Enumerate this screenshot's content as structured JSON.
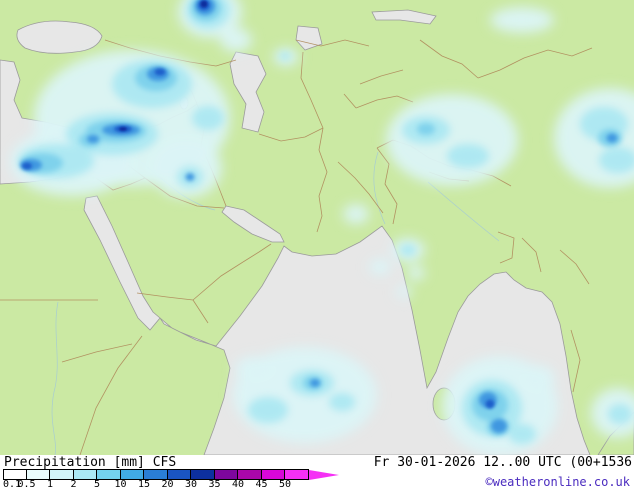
{
  "footer": {
    "title": "Precipitation [mm] CFS",
    "datetime": "Fr 30-01-2026 12..00 UTC (00+1536",
    "copyright": "©weatheronline.co.uk"
  },
  "legend": {
    "ticks": [
      "0.1",
      "0.5",
      "1",
      "2",
      "5",
      "10",
      "15",
      "20",
      "30",
      "35",
      "40",
      "45",
      "50"
    ],
    "segment_colors": [
      "#ffffff",
      "#eafcfd",
      "#d2f5fa",
      "#abe9f5",
      "#74d2ee",
      "#41abe5",
      "#2a7ed6",
      "#1a55c2",
      "#0d309f",
      "#7d079d",
      "#ab07ab",
      "#d907d9",
      "#f530f5"
    ]
  },
  "colors": {
    "land": "#cbe9a3",
    "sea": "#e7e7e7",
    "coast": "#9b9b9b",
    "border": "#b08d5e",
    "river": "#9fc6dc",
    "wash": "#dbf4f7",
    "light": "#aee8f2",
    "mid": "#7fd2ec",
    "blue": "#3f97e0",
    "deep": "#1e5ecb",
    "navy": "#0c2f9e",
    "arrow": "#f530f5",
    "copyright": "#4a2bbf"
  }
}
